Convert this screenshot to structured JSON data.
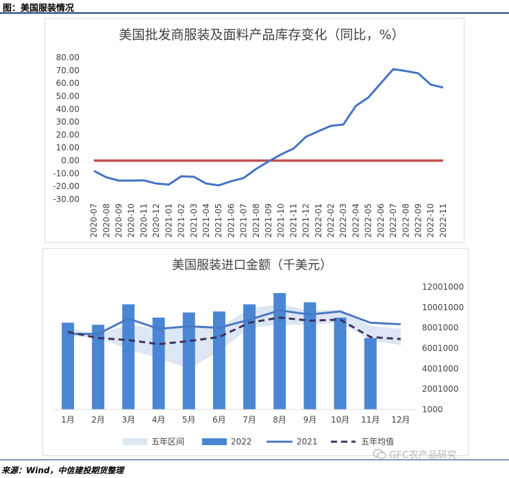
{
  "figure_title": "图：美国服装情况",
  "source_note": "来源：Wind，中信建投期货整理",
  "watermark": "GFC农产品研究",
  "watermark_icon": "wechat-icon",
  "colors": {
    "chart1_line": "#4472c4",
    "chart1_zero": "#c0504d",
    "bars_2022": "#4a86d4",
    "line_2021": "#4a78c2",
    "band_5yr": "#dde6f3",
    "avg_5yr": "#3b3159",
    "rule": "#1f3f7f"
  },
  "chart_data": [
    {
      "type": "line",
      "title": "美国批发商服装及面料产品库存变化（同比，%）",
      "ylim": [
        -30,
        80
      ],
      "yticks": [
        "80.00",
        "70.00",
        "60.00",
        "50.00",
        "40.00",
        "30.00",
        "20.00",
        "10.00",
        "0.00",
        "-10.00",
        "-20.00",
        "-30.00"
      ],
      "categories": [
        "2020-07",
        "2020-08",
        "2020-09",
        "2020-10",
        "2020-11",
        "2020-12",
        "2021-01",
        "2021-02",
        "2021-03",
        "2021-04",
        "2021-05",
        "2021-06",
        "2021-07",
        "2021-08",
        "2021-09",
        "2021-10",
        "2021-11",
        "2021-12",
        "2022-01",
        "2022-02",
        "2022-03",
        "2022-04",
        "2022-05",
        "2022-06",
        "2022-07",
        "2022-08",
        "2022-09",
        "2022-10",
        "2022-11"
      ],
      "series": [
        {
          "values": [
            -8,
            -13,
            -15.5,
            -15.5,
            -15.3,
            -17.8,
            -18.6,
            -12.2,
            -12.5,
            -17.8,
            -19.2,
            -16,
            -13.5,
            -6.5,
            -0.6,
            4.8,
            9.3,
            18.5,
            22.8,
            27,
            28,
            42.5,
            49,
            60,
            71,
            69.5,
            67.8,
            59,
            56.7
          ]
        },
        {
          "values": [
            0,
            0,
            0,
            0,
            0,
            0,
            0,
            0,
            0,
            0,
            0,
            0,
            0,
            0,
            0,
            0,
            0,
            0,
            0,
            0,
            0,
            0,
            0,
            0,
            0,
            0,
            0,
            0,
            0
          ]
        }
      ]
    },
    {
      "type": "bar",
      "title": "美国服装进口金额（千美元）",
      "ylim": [
        1000,
        12001000
      ],
      "yticks": [
        "12001000",
        "10001000",
        "8001000",
        "6001000",
        "4001000",
        "2001000",
        "1000"
      ],
      "categories": [
        "1月",
        "2月",
        "3月",
        "4月",
        "5月",
        "6月",
        "7月",
        "8月",
        "9月",
        "10月",
        "11月",
        "12月"
      ],
      "series": [
        {
          "name": "五年区间",
          "type": "area",
          "low": [
            7200000,
            7000000,
            5900000,
            5000000,
            4000000,
            5700000,
            8000000,
            8300000,
            8300000,
            8500000,
            6800000,
            6300000
          ],
          "high": [
            8000000,
            7400000,
            8300000,
            7900000,
            8000000,
            8000000,
            9900000,
            10300000,
            9700000,
            9800000,
            8200000,
            7900000
          ]
        },
        {
          "name": "2022",
          "type": "bar",
          "values": [
            8500000,
            8300000,
            10300000,
            9000000,
            9500000,
            9600000,
            10300000,
            11400000,
            10500000,
            9000000,
            7000000,
            null
          ]
        },
        {
          "name": "2021",
          "type": "line",
          "values": [
            7400000,
            7400000,
            8900000,
            7900000,
            8150000,
            8000000,
            8800000,
            9700000,
            9300000,
            9600000,
            8500000,
            8350000
          ]
        },
        {
          "name": "五年均值",
          "type": "line-dashed",
          "values": [
            7600000,
            7000000,
            6800000,
            6400000,
            6700000,
            7100000,
            8500000,
            9000000,
            8700000,
            8800000,
            7100000,
            6900000
          ]
        }
      ],
      "legend_position": "bottom"
    }
  ]
}
